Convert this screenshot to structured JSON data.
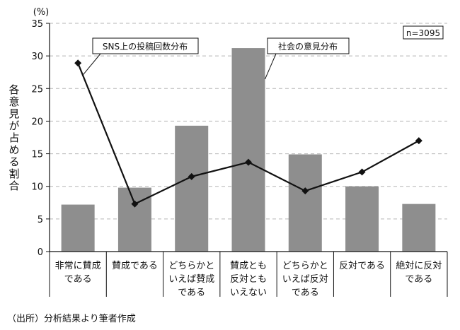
{
  "chart_data": {
    "type": "bar",
    "y_unit": "(%)",
    "ylabel": "各意見が占める割合",
    "ylim": [
      0,
      35
    ],
    "yticks": [
      0,
      5,
      10,
      15,
      20,
      25,
      30,
      35
    ],
    "grid": true,
    "categories": [
      [
        "非常に賛成",
        "である"
      ],
      [
        "賛成である"
      ],
      [
        "どちらかと",
        "いえば賛成",
        "である"
      ],
      [
        "賛成とも",
        "反対とも",
        "いえない"
      ],
      [
        "どちらかと",
        "いえば反対",
        "である"
      ],
      [
        "反対である"
      ],
      [
        "絶対に反対",
        "である"
      ]
    ],
    "series": [
      {
        "name": "社会の意見分布",
        "kind": "bar",
        "color": "#8e8e8e",
        "values": [
          7.2,
          9.8,
          19.3,
          31.2,
          14.9,
          10.0,
          7.3
        ]
      },
      {
        "name": "SNS上の投稿回数分布",
        "kind": "line",
        "color": "#111111",
        "marker": "diamond",
        "values": [
          28.9,
          7.3,
          11.5,
          13.7,
          9.3,
          12.2,
          17.0
        ]
      }
    ],
    "sample_note": "n=3095",
    "source": "（出所）分析結果より筆者作成"
  }
}
